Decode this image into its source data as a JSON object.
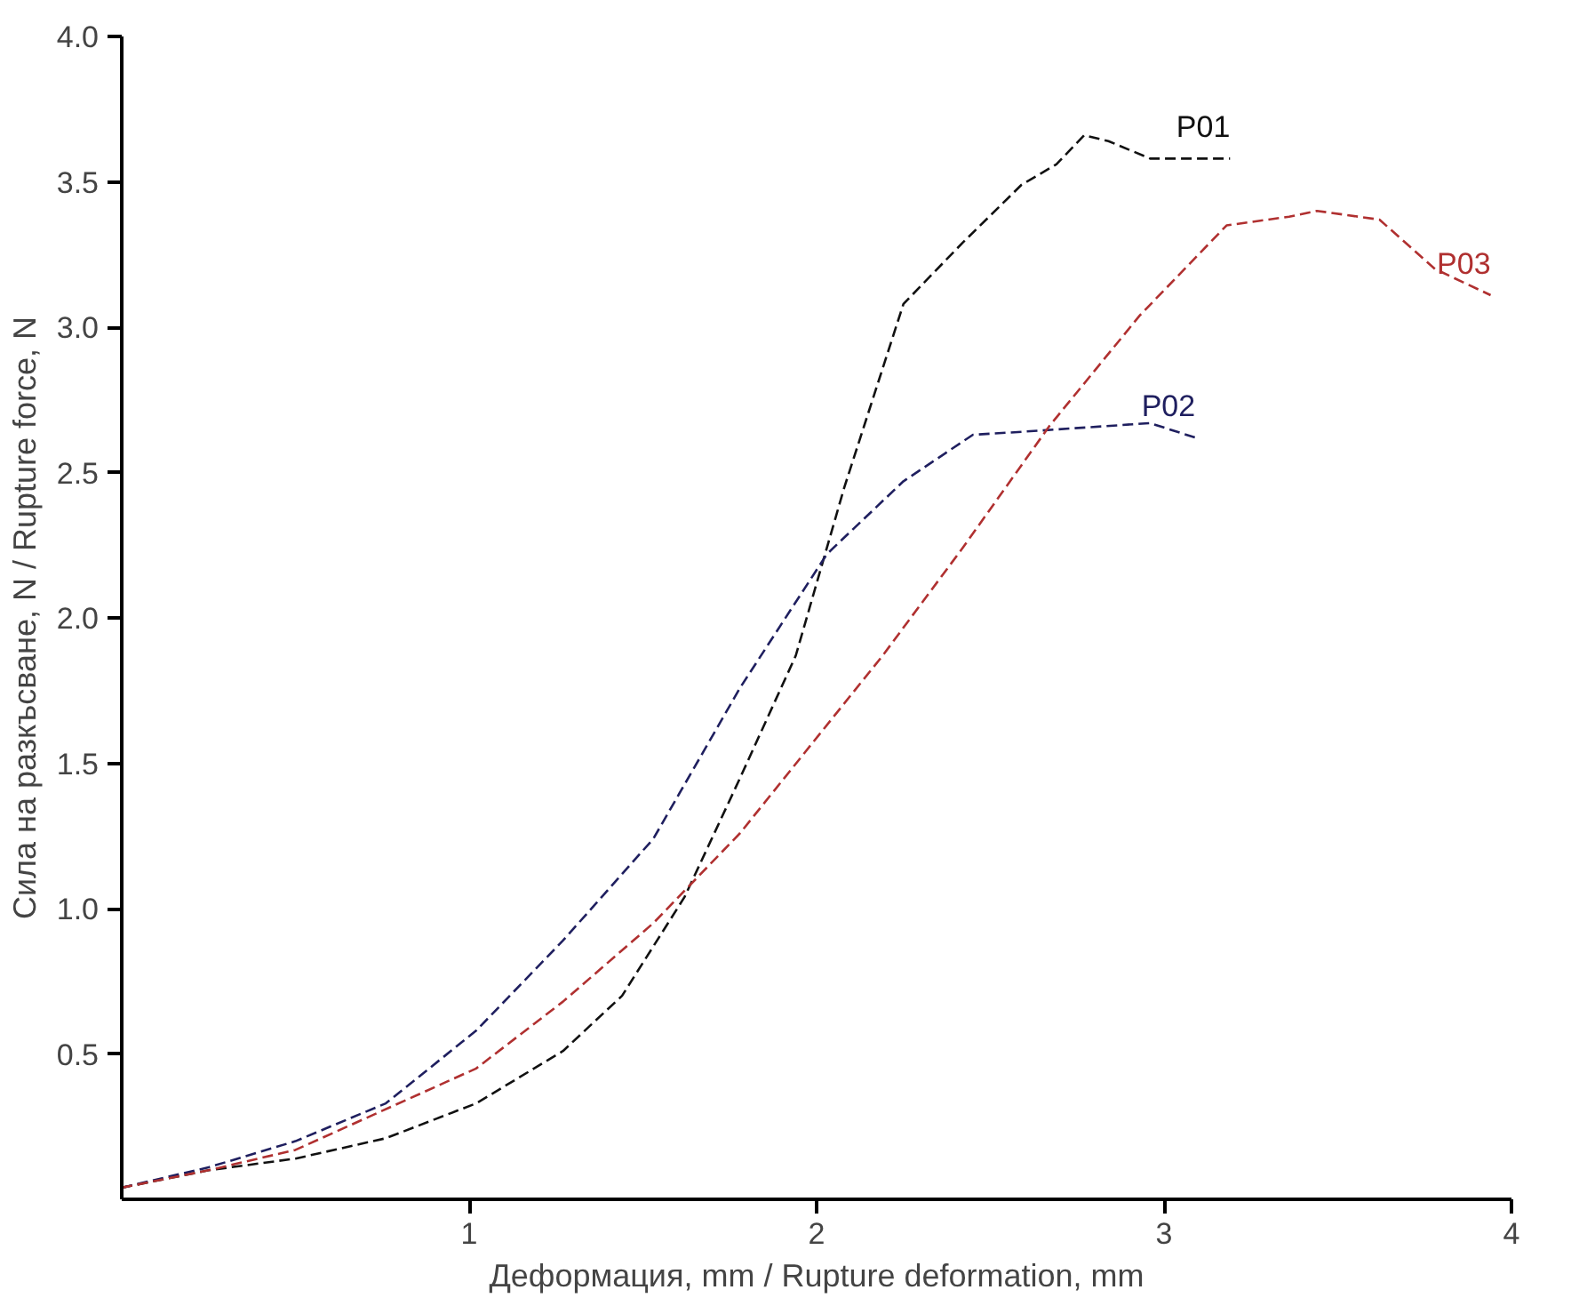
{
  "chart_data": {
    "type": "line",
    "xlabel": "Деформация, mm / Rupture deformation, mm",
    "ylabel": "Сила на разкъсване, N / Rupture force, N",
    "xlim": [
      0,
      4
    ],
    "ylim": [
      0,
      4
    ],
    "xticks": [
      1,
      2,
      3,
      4
    ],
    "yticks": [
      0.5,
      {
        "value": 1,
        "label": "1.0"
      },
      1.5,
      {
        "value": 2,
        "label": "2.0"
      },
      2.5,
      {
        "value": 3,
        "label": "3.0"
      },
      3.5,
      {
        "value": 4,
        "label": "4.0"
      }
    ],
    "grid": false,
    "legend": false,
    "line_style": "dashed",
    "marker": "none",
    "series": [
      {
        "name": "P01",
        "color": "#111111",
        "x": [
          0,
          0.25,
          0.5,
          0.76,
          1.02,
          1.27,
          1.44,
          1.62,
          1.78,
          1.94,
          2.08,
          2.25,
          2.42,
          2.59,
          2.69,
          2.77,
          2.84,
          2.96,
          3.19
        ],
        "values": [
          0.04,
          0.1,
          0.14,
          0.21,
          0.33,
          0.51,
          0.7,
          1.04,
          1.45,
          1.87,
          2.45,
          3.08,
          3.29,
          3.49,
          3.56,
          3.66,
          3.64,
          3.58,
          3.58
        ]
      },
      {
        "name": "P02",
        "color": "#1f1f5f",
        "x": [
          0,
          0.25,
          0.5,
          0.76,
          1.02,
          1.27,
          1.53,
          1.78,
          2.03,
          2.25,
          2.45,
          2.59,
          2.96,
          3.09
        ],
        "values": [
          0.04,
          0.11,
          0.2,
          0.33,
          0.58,
          0.89,
          1.24,
          1.76,
          2.22,
          2.47,
          2.63,
          2.64,
          2.67,
          2.62
        ]
      },
      {
        "name": "P03",
        "color": "#b03030",
        "x": [
          0,
          0.25,
          0.5,
          1.02,
          1.27,
          1.53,
          1.78,
          2.19,
          2.42,
          2.67,
          2.93,
          3.18,
          3.36,
          3.44,
          3.62,
          3.78,
          3.94
        ],
        "values": [
          0.04,
          0.1,
          0.17,
          0.45,
          0.68,
          0.95,
          1.26,
          1.87,
          2.24,
          2.66,
          3.04,
          3.35,
          3.38,
          3.4,
          3.37,
          3.2,
          3.11
        ]
      }
    ]
  }
}
